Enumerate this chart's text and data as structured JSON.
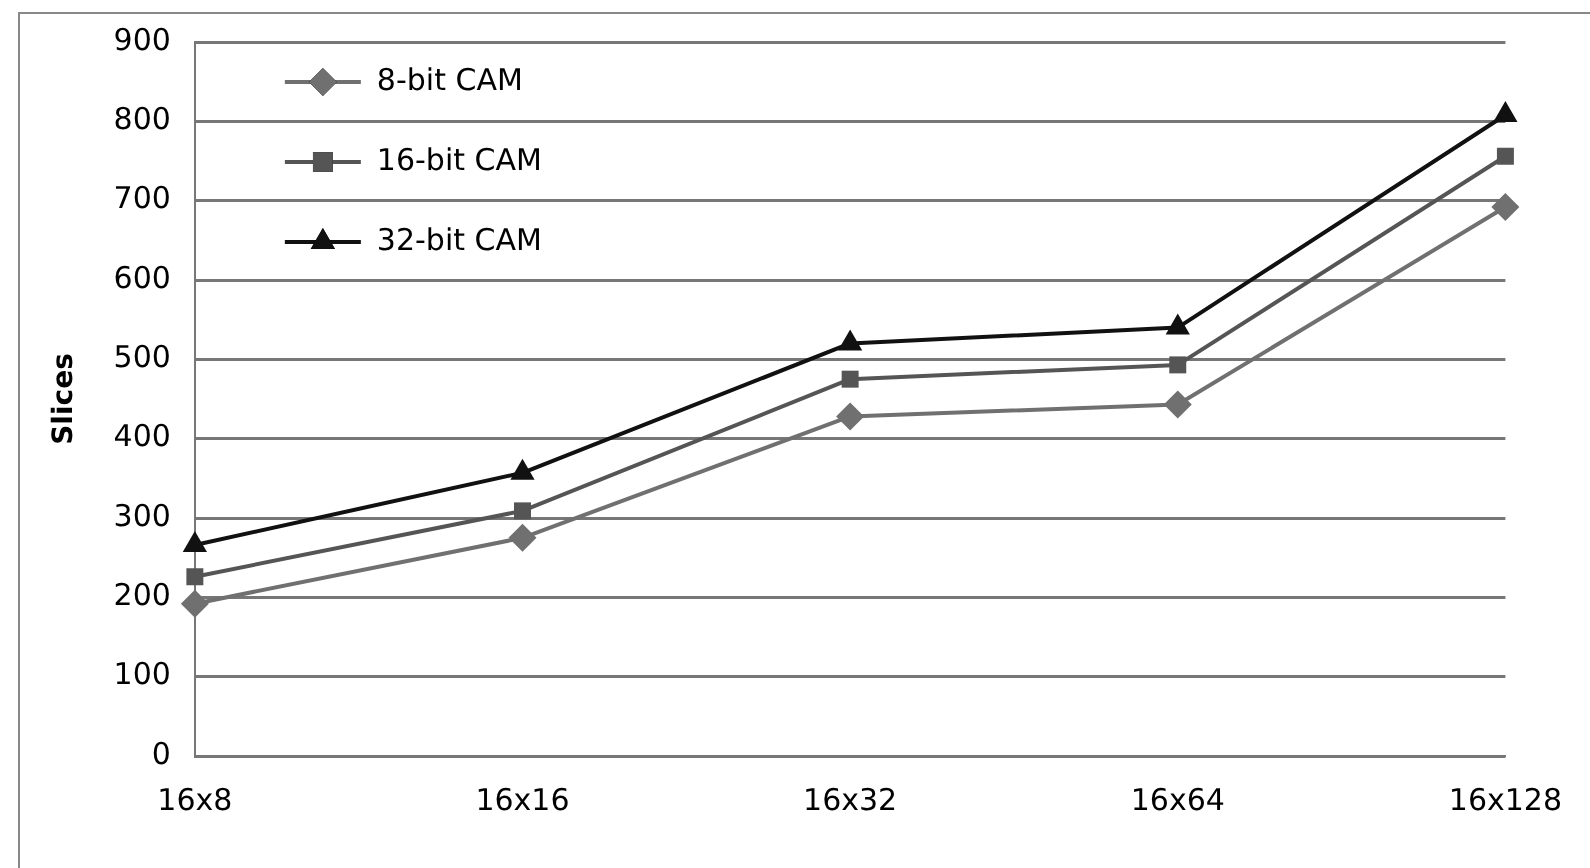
{
  "chart_data": {
    "type": "line",
    "ylabel": "Slices",
    "categories": [
      "16x8",
      "16x16",
      "16x32",
      "16x64",
      "16x128"
    ],
    "ylim": [
      0,
      900
    ],
    "yticks": [
      0,
      100,
      200,
      300,
      400,
      500,
      600,
      700,
      800,
      900
    ],
    "grid": "y",
    "legend": "top left",
    "series": [
      {
        "name": "8-bit CAM",
        "color": "#707070",
        "marker": "diamond",
        "values": [
          192,
          275,
          428,
          443,
          692
        ]
      },
      {
        "name": "16-bit CAM",
        "color": "#555555",
        "marker": "square",
        "values": [
          226,
          309,
          475,
          493,
          756
        ]
      },
      {
        "name": "32-bit CAM",
        "color": "#111111",
        "marker": "triangle",
        "values": [
          266,
          357,
          520,
          540,
          808
        ]
      }
    ]
  }
}
